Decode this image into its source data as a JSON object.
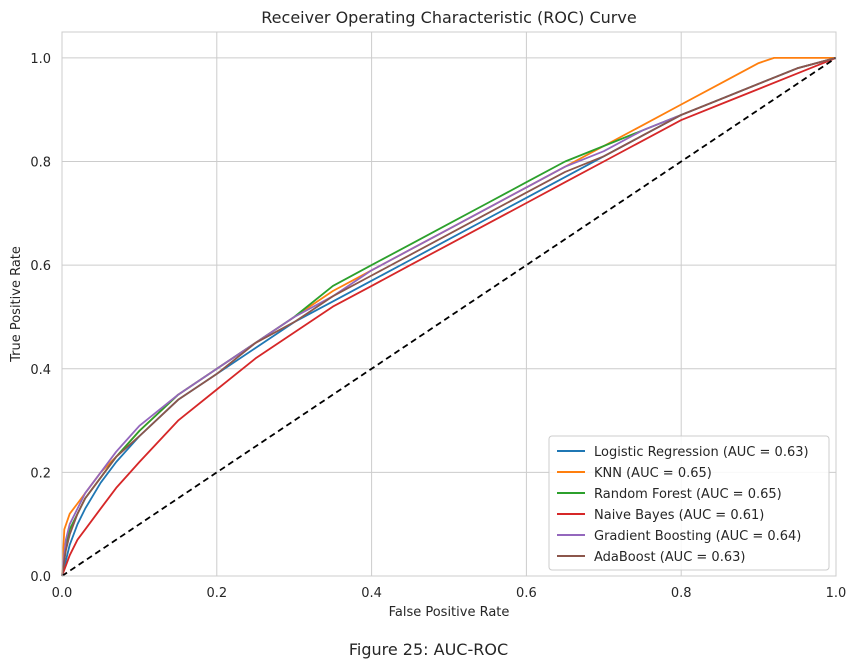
{
  "figure": {
    "caption": "Figure 25: AUC-ROC"
  },
  "chart_data": {
    "type": "line",
    "title": "Receiver Operating Characteristic (ROC) Curve",
    "xlabel": "False Positive Rate",
    "ylabel": "True Positive Rate",
    "xlim": [
      0,
      1
    ],
    "ylim": [
      0,
      1.05
    ],
    "xticks": [
      0.0,
      0.2,
      0.4,
      0.6,
      0.8,
      1.0
    ],
    "yticks": [
      0.0,
      0.2,
      0.4,
      0.6,
      0.8,
      1.0
    ],
    "xtick_labels": [
      "0.0",
      "0.2",
      "0.4",
      "0.6",
      "0.8",
      "1.0"
    ],
    "ytick_labels": [
      "0.0",
      "0.2",
      "0.4",
      "0.6",
      "0.8",
      "1.0"
    ],
    "grid": true,
    "legend_position": "lower-right",
    "series": [
      {
        "name": "Logistic Regression (AUC = 0.63)",
        "color": "#1f77b4",
        "style": "solid",
        "x": [
          0,
          0.005,
          0.01,
          0.02,
          0.03,
          0.05,
          0.07,
          0.1,
          0.15,
          0.2,
          0.25,
          0.3,
          0.35,
          0.4,
          0.45,
          0.5,
          0.55,
          0.6,
          0.65,
          0.7,
          0.75,
          0.8,
          0.85,
          0.9,
          0.95,
          1.0
        ],
        "y": [
          0,
          0.03,
          0.06,
          0.1,
          0.13,
          0.18,
          0.22,
          0.27,
          0.34,
          0.39,
          0.44,
          0.49,
          0.53,
          0.57,
          0.61,
          0.65,
          0.69,
          0.73,
          0.77,
          0.81,
          0.85,
          0.89,
          0.92,
          0.95,
          0.98,
          1.0
        ]
      },
      {
        "name": "KNN (AUC = 0.65)",
        "color": "#ff7f0e",
        "style": "solid",
        "x": [
          0,
          0.003,
          0.01,
          0.02,
          0.03,
          0.05,
          0.07,
          0.1,
          0.15,
          0.2,
          0.25,
          0.3,
          0.35,
          0.4,
          0.45,
          0.5,
          0.55,
          0.6,
          0.65,
          0.7,
          0.75,
          0.8,
          0.85,
          0.9,
          0.92,
          1.0
        ],
        "y": [
          0,
          0.09,
          0.12,
          0.14,
          0.16,
          0.2,
          0.23,
          0.28,
          0.35,
          0.4,
          0.45,
          0.5,
          0.55,
          0.59,
          0.63,
          0.67,
          0.71,
          0.75,
          0.79,
          0.83,
          0.87,
          0.91,
          0.95,
          0.99,
          1.0,
          1.0
        ]
      },
      {
        "name": "Random Forest (AUC = 0.65)",
        "color": "#2ca02c",
        "style": "solid",
        "x": [
          0,
          0.005,
          0.01,
          0.02,
          0.03,
          0.05,
          0.07,
          0.1,
          0.15,
          0.2,
          0.25,
          0.3,
          0.35,
          0.4,
          0.45,
          0.5,
          0.55,
          0.6,
          0.65,
          0.7,
          0.75,
          0.8,
          0.85,
          0.9,
          0.95,
          1.0
        ],
        "y": [
          0,
          0.06,
          0.09,
          0.12,
          0.15,
          0.19,
          0.23,
          0.28,
          0.35,
          0.4,
          0.45,
          0.5,
          0.56,
          0.6,
          0.64,
          0.68,
          0.72,
          0.76,
          0.8,
          0.83,
          0.86,
          0.89,
          0.92,
          0.95,
          0.98,
          1.0
        ]
      },
      {
        "name": "Naive Bayes (AUC = 0.61)",
        "color": "#d62728",
        "style": "solid",
        "x": [
          0,
          0.005,
          0.01,
          0.02,
          0.03,
          0.05,
          0.07,
          0.1,
          0.15,
          0.2,
          0.25,
          0.3,
          0.35,
          0.4,
          0.45,
          0.5,
          0.55,
          0.6,
          0.65,
          0.7,
          0.75,
          0.8,
          0.85,
          0.9,
          0.95,
          1.0
        ],
        "y": [
          0,
          0.02,
          0.04,
          0.07,
          0.09,
          0.13,
          0.17,
          0.22,
          0.3,
          0.36,
          0.42,
          0.47,
          0.52,
          0.56,
          0.6,
          0.64,
          0.68,
          0.72,
          0.76,
          0.8,
          0.84,
          0.88,
          0.91,
          0.94,
          0.97,
          1.0
        ]
      },
      {
        "name": "Gradient Boosting (AUC = 0.64)",
        "color": "#9467bd",
        "style": "solid",
        "x": [
          0,
          0.005,
          0.01,
          0.02,
          0.03,
          0.05,
          0.07,
          0.1,
          0.15,
          0.2,
          0.25,
          0.3,
          0.35,
          0.4,
          0.45,
          0.5,
          0.55,
          0.6,
          0.65,
          0.7,
          0.75,
          0.8,
          0.85,
          0.9,
          0.95,
          1.0
        ],
        "y": [
          0,
          0.07,
          0.1,
          0.13,
          0.16,
          0.2,
          0.24,
          0.29,
          0.35,
          0.4,
          0.45,
          0.5,
          0.54,
          0.59,
          0.63,
          0.67,
          0.71,
          0.75,
          0.79,
          0.82,
          0.86,
          0.89,
          0.92,
          0.95,
          0.98,
          1.0
        ]
      },
      {
        "name": "AdaBoost (AUC = 0.63)",
        "color": "#8c564b",
        "style": "solid",
        "x": [
          0,
          0.005,
          0.01,
          0.02,
          0.03,
          0.05,
          0.07,
          0.1,
          0.15,
          0.2,
          0.25,
          0.3,
          0.35,
          0.4,
          0.45,
          0.5,
          0.55,
          0.6,
          0.65,
          0.7,
          0.75,
          0.8,
          0.85,
          0.9,
          0.95,
          1.0
        ],
        "y": [
          0,
          0.05,
          0.08,
          0.12,
          0.15,
          0.19,
          0.23,
          0.27,
          0.34,
          0.39,
          0.45,
          0.49,
          0.54,
          0.58,
          0.62,
          0.66,
          0.7,
          0.74,
          0.78,
          0.81,
          0.85,
          0.89,
          0.92,
          0.95,
          0.98,
          1.0
        ]
      },
      {
        "name": "",
        "color": "#000000",
        "style": "dashed",
        "x": [
          0,
          1
        ],
        "y": [
          0,
          1
        ]
      }
    ]
  }
}
